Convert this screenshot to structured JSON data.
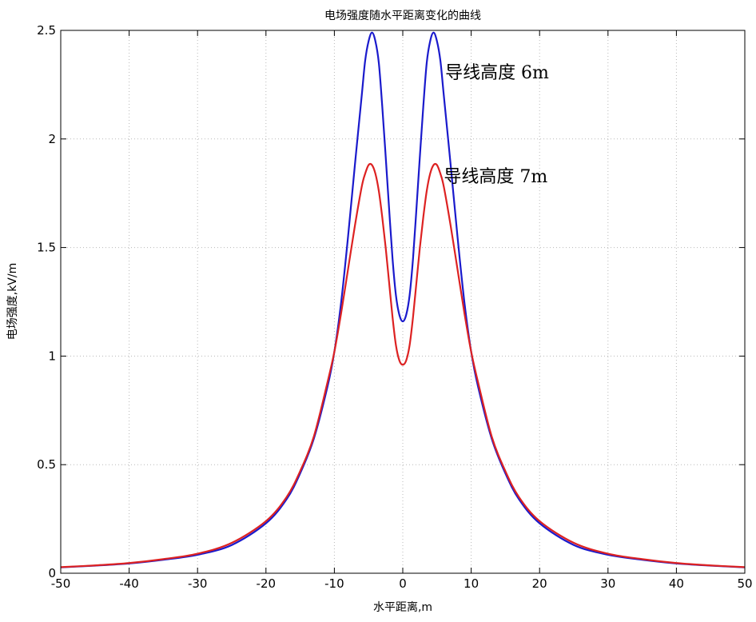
{
  "chart_data": {
    "type": "line",
    "title": "电场强度随水平距离变化的曲线",
    "xlabel": "水平距离,m",
    "ylabel": "电场强度,kV/m",
    "xlim": [
      -50,
      50
    ],
    "ylim": [
      0,
      2.5
    ],
    "xticks": [
      -50,
      -40,
      -30,
      -20,
      -10,
      0,
      10,
      20,
      30,
      40,
      50
    ],
    "xtick_labels": [
      "-50",
      "-40",
      "-30",
      "-20",
      "-10",
      "0",
      "10",
      "20",
      "30",
      "40",
      "50"
    ],
    "yticks": [
      0,
      0.5,
      1,
      1.5,
      2,
      2.5
    ],
    "ytick_labels": [
      "0",
      "0.5",
      "1",
      "1.5",
      "2",
      "2.5"
    ],
    "grid": true,
    "series": [
      {
        "name": "导线高度 6m",
        "color": "#1a1acc",
        "x": [
          -50,
          -45,
          -40,
          -35,
          -30,
          -25,
          -20,
          -17,
          -15,
          -13,
          -11,
          -10,
          -9,
          -8,
          -7,
          -6,
          -5.5,
          -5,
          -4.5,
          -4,
          -3.5,
          -3,
          -2.5,
          -2,
          -1.5,
          -1,
          -0.5,
          0,
          0.5,
          1,
          1.5,
          2,
          2.5,
          3,
          3.5,
          4,
          4.5,
          5,
          5.5,
          6,
          7,
          8,
          9,
          10,
          11,
          13,
          15,
          17,
          20,
          25,
          30,
          35,
          40,
          45,
          50
        ],
        "y": [
          0.027,
          0.035,
          0.045,
          0.062,
          0.085,
          0.13,
          0.23,
          0.34,
          0.46,
          0.62,
          0.86,
          1.02,
          1.25,
          1.55,
          1.88,
          2.2,
          2.36,
          2.45,
          2.49,
          2.45,
          2.35,
          2.15,
          1.92,
          1.68,
          1.45,
          1.28,
          1.19,
          1.16,
          1.19,
          1.28,
          1.45,
          1.68,
          1.92,
          2.15,
          2.35,
          2.45,
          2.49,
          2.45,
          2.36,
          2.2,
          1.88,
          1.55,
          1.25,
          1.02,
          0.86,
          0.62,
          0.46,
          0.34,
          0.23,
          0.13,
          0.085,
          0.062,
          0.045,
          0.035,
          0.027
        ]
      },
      {
        "name": "导线高度 7m",
        "color": "#dd2222",
        "x": [
          -50,
          -45,
          -40,
          -35,
          -30,
          -25,
          -20,
          -17,
          -15,
          -13,
          -11,
          -10,
          -9,
          -8,
          -7,
          -6,
          -5.5,
          -5,
          -4.5,
          -4,
          -3.5,
          -3,
          -2.5,
          -2,
          -1.5,
          -1,
          -0.5,
          0,
          0.5,
          1,
          1.5,
          2,
          2.5,
          3,
          3.5,
          4,
          4.5,
          5,
          5.5,
          6,
          7,
          8,
          9,
          10,
          11,
          13,
          15,
          17,
          20,
          25,
          30,
          35,
          40,
          45,
          50
        ],
        "y": [
          0.028,
          0.036,
          0.047,
          0.065,
          0.09,
          0.14,
          0.24,
          0.35,
          0.47,
          0.63,
          0.88,
          1.02,
          1.2,
          1.4,
          1.6,
          1.78,
          1.84,
          1.88,
          1.88,
          1.84,
          1.76,
          1.64,
          1.5,
          1.34,
          1.18,
          1.05,
          0.98,
          0.96,
          0.98,
          1.05,
          1.18,
          1.34,
          1.5,
          1.64,
          1.76,
          1.84,
          1.88,
          1.88,
          1.84,
          1.78,
          1.6,
          1.4,
          1.2,
          1.02,
          0.88,
          0.63,
          0.47,
          0.35,
          0.24,
          0.14,
          0.09,
          0.065,
          0.047,
          0.036,
          0.028
        ]
      }
    ],
    "annotations": [
      {
        "text": "导线高度 6m",
        "x": 6.2,
        "y": 2.28,
        "series": "导线高度 6m"
      },
      {
        "text": "导线高度 7m",
        "x": 6.0,
        "y": 1.8,
        "series": "导线高度 7m"
      }
    ]
  }
}
